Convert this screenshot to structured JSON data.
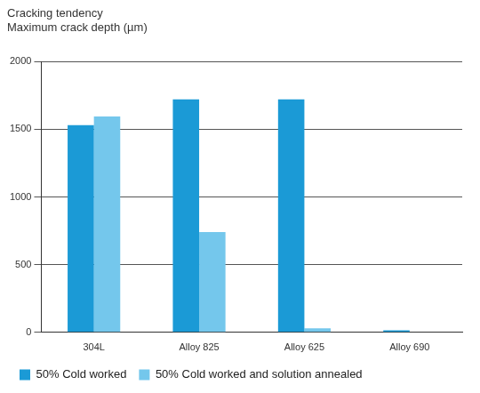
{
  "chart_data": {
    "type": "bar",
    "title": "Cracking tendency",
    "y_label": "Maximum crack depth (µm)",
    "categories": [
      "304L",
      "Alloy 825",
      "Alloy 625",
      "Alloy 690"
    ],
    "series": [
      {
        "name": "50% Cold worked",
        "color": "#1b9ad6",
        "values": [
          1530,
          1720,
          1720,
          15
        ]
      },
      {
        "name": "50% Cold worked and solution annealed",
        "color": "#74c7ec",
        "values": [
          1595,
          740,
          30,
          0
        ]
      }
    ],
    "ylim": [
      0,
      2000
    ],
    "yticks": [
      0,
      500,
      1000,
      1500,
      2000
    ],
    "grid": true,
    "legend": "bottom"
  }
}
